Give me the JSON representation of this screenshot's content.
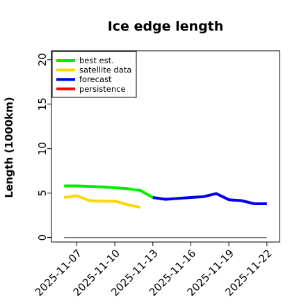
{
  "chart_data": {
    "type": "line",
    "title": "Ice edge length",
    "xlabel": "",
    "ylabel": "Length (1000km)",
    "ylim": [
      -0.5,
      21
    ],
    "xlim": [
      "2025-11-05",
      "2025-11-23"
    ],
    "y_ticks": [
      0,
      5,
      10,
      15,
      20
    ],
    "y_tick_labels": [
      "0",
      "5",
      "10",
      "15",
      "20"
    ],
    "x_ticks": [
      "2025-11-07",
      "2025-11-10",
      "2025-11-13",
      "2025-11-16",
      "2025-11-19",
      "2025-11-22"
    ],
    "x_tick_labels": [
      "2025-11-07",
      "2025-11-10",
      "2025-11-13",
      "2025-11-16",
      "2025-11-19",
      "2025-11-22"
    ],
    "highlighted_tick": "2025-11-13",
    "highlight_color": "#228B22",
    "grid": false,
    "legend_position": "top-left",
    "series": [
      {
        "name": "best est.",
        "color": "#00ee00",
        "x": [
          "2025-11-06",
          "2025-11-07",
          "2025-11-08",
          "2025-11-09",
          "2025-11-10",
          "2025-11-11",
          "2025-11-12",
          "2025-11-13"
        ],
        "y": [
          5.8,
          5.8,
          5.75,
          5.7,
          5.6,
          5.5,
          5.3,
          4.5
        ]
      },
      {
        "name": "satellite data",
        "color": "#ffd700",
        "x": [
          "2025-11-06",
          "2025-11-07",
          "2025-11-08",
          "2025-11-09",
          "2025-11-10",
          "2025-11-11",
          "2025-11-12"
        ],
        "y": [
          4.5,
          4.7,
          4.15,
          4.1,
          4.1,
          3.7,
          3.4
        ]
      },
      {
        "name": "forecast",
        "color": "#0000ee",
        "x": [
          "2025-11-13",
          "2025-11-14",
          "2025-11-15",
          "2025-11-16",
          "2025-11-17",
          "2025-11-18",
          "2025-11-19",
          "2025-11-20",
          "2025-11-21",
          "2025-11-22"
        ],
        "y": [
          4.5,
          4.3,
          4.4,
          4.5,
          4.6,
          4.95,
          4.25,
          4.15,
          3.8,
          3.8
        ]
      },
      {
        "name": "persistence",
        "color": "#ff0000",
        "x": [],
        "y": []
      }
    ],
    "reference_line": {
      "color": "#808080",
      "y": 0,
      "x": [
        "2025-11-06",
        "2025-11-22"
      ]
    }
  }
}
